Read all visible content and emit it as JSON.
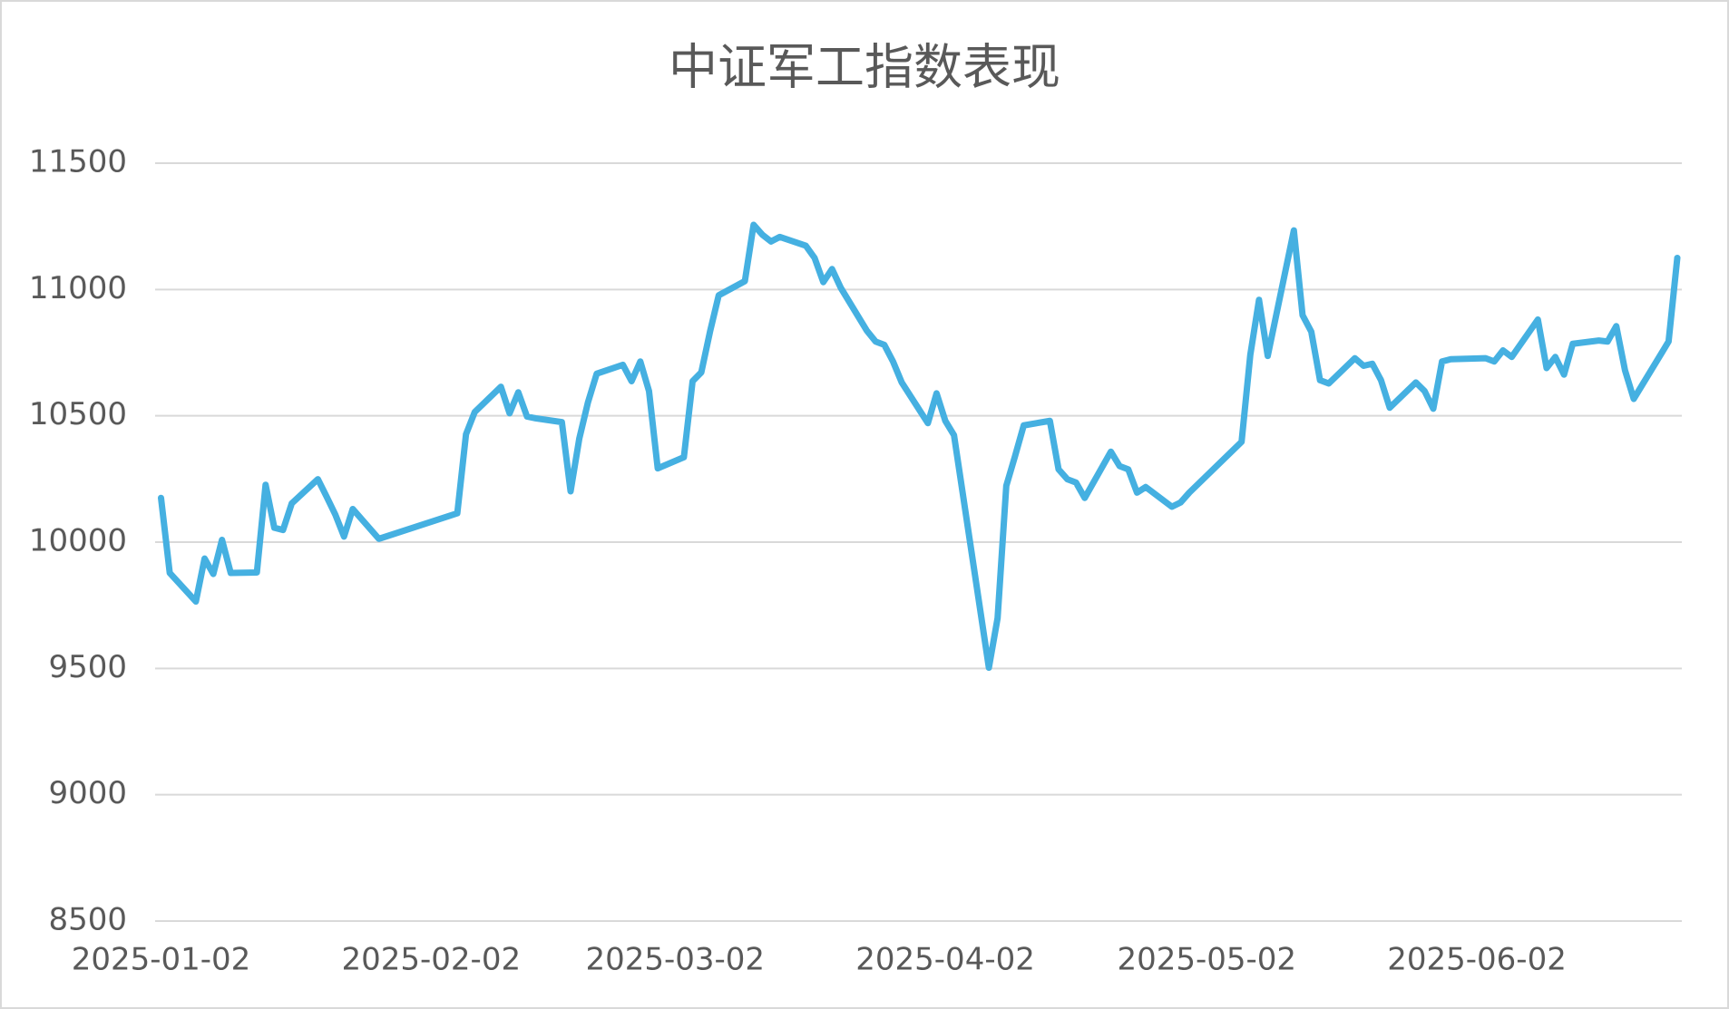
{
  "chart_data": {
    "type": "line",
    "title": "中证军工指数表现",
    "x": [
      "2025-01-02",
      "2025-01-03",
      "2025-01-06",
      "2025-01-07",
      "2025-01-08",
      "2025-01-09",
      "2025-01-10",
      "2025-01-13",
      "2025-01-14",
      "2025-01-15",
      "2025-01-16",
      "2025-01-17",
      "2025-01-20",
      "2025-01-21",
      "2025-01-22",
      "2025-01-23",
      "2025-01-24",
      "2025-01-27",
      "2025-02-05",
      "2025-02-06",
      "2025-02-07",
      "2025-02-10",
      "2025-02-11",
      "2025-02-12",
      "2025-02-13",
      "2025-02-14",
      "2025-02-17",
      "2025-02-18",
      "2025-02-19",
      "2025-02-20",
      "2025-02-21",
      "2025-02-24",
      "2025-02-25",
      "2025-02-26",
      "2025-02-27",
      "2025-02-28",
      "2025-03-03",
      "2025-03-04",
      "2025-03-05",
      "2025-03-06",
      "2025-03-07",
      "2025-03-10",
      "2025-03-11",
      "2025-03-12",
      "2025-03-13",
      "2025-03-14",
      "2025-03-17",
      "2025-03-18",
      "2025-03-19",
      "2025-03-20",
      "2025-03-21",
      "2025-03-24",
      "2025-03-25",
      "2025-03-26",
      "2025-03-27",
      "2025-03-28",
      "2025-03-31",
      "2025-04-01",
      "2025-04-02",
      "2025-04-03",
      "2025-04-07",
      "2025-04-08",
      "2025-04-09",
      "2025-04-10",
      "2025-04-11",
      "2025-04-14",
      "2025-04-15",
      "2025-04-16",
      "2025-04-17",
      "2025-04-18",
      "2025-04-21",
      "2025-04-22",
      "2025-04-23",
      "2025-04-24",
      "2025-04-25",
      "2025-04-28",
      "2025-04-29",
      "2025-04-30",
      "2025-05-06",
      "2025-05-07",
      "2025-05-08",
      "2025-05-09",
      "2025-05-12",
      "2025-05-13",
      "2025-05-14",
      "2025-05-15",
      "2025-05-16",
      "2025-05-19",
      "2025-05-20",
      "2025-05-21",
      "2025-05-22",
      "2025-05-23",
      "2025-05-26",
      "2025-05-27",
      "2025-05-28",
      "2025-05-29",
      "2025-05-30",
      "2025-06-03",
      "2025-06-04",
      "2025-06-05",
      "2025-06-06",
      "2025-06-09",
      "2025-06-10",
      "2025-06-11",
      "2025-06-12",
      "2025-06-13",
      "2025-06-16",
      "2025-06-17",
      "2025-06-18",
      "2025-06-19",
      "2025-06-20",
      "2025-06-23",
      "2025-06-24",
      "2025-06-25"
    ],
    "values": [
      10175,
      9878,
      9765,
      9935,
      9874,
      10009,
      9878,
      9880,
      10227,
      10057,
      10048,
      10153,
      10249,
      10180,
      10109,
      10022,
      10131,
      10013,
      10114,
      10427,
      10515,
      10615,
      10510,
      10593,
      10497,
      10490,
      10475,
      10201,
      10410,
      10554,
      10667,
      10702,
      10637,
      10715,
      10598,
      10292,
      10336,
      10637,
      10672,
      10833,
      10977,
      11033,
      11256,
      11217,
      11190,
      11208,
      11173,
      11125,
      11029,
      11081,
      11007,
      10837,
      10794,
      10781,
      10715,
      10632,
      10471,
      10589,
      10480,
      10423,
      9503,
      9699,
      10223,
      10340,
      10462,
      10480,
      10288,
      10249,
      10236,
      10175,
      10358,
      10301,
      10288,
      10196,
      10218,
      10140,
      10157,
      10196,
      10397,
      10741,
      10959,
      10737,
      11234,
      10898,
      10833,
      10641,
      10628,
      10728,
      10698,
      10706,
      10641,
      10532,
      10632,
      10598,
      10528,
      10715,
      10724,
      10728,
      10715,
      10759,
      10733,
      10881,
      10689,
      10733,
      10663,
      10785,
      10798,
      10794,
      10855,
      10680,
      10567,
      10737,
      10794,
      11125
    ],
    "color": "#45b0e1",
    "xlim": [
      "2025-01-02",
      "2025-06-25"
    ],
    "xticks": [
      "2025-01-02",
      "2025-02-02",
      "2025-03-02",
      "2025-04-02",
      "2025-05-02",
      "2025-06-02"
    ],
    "ylim": [
      8500,
      11500
    ],
    "yticks": [
      8500,
      9000,
      9500,
      10000,
      10500,
      11000,
      11500
    ],
    "grid": true
  }
}
